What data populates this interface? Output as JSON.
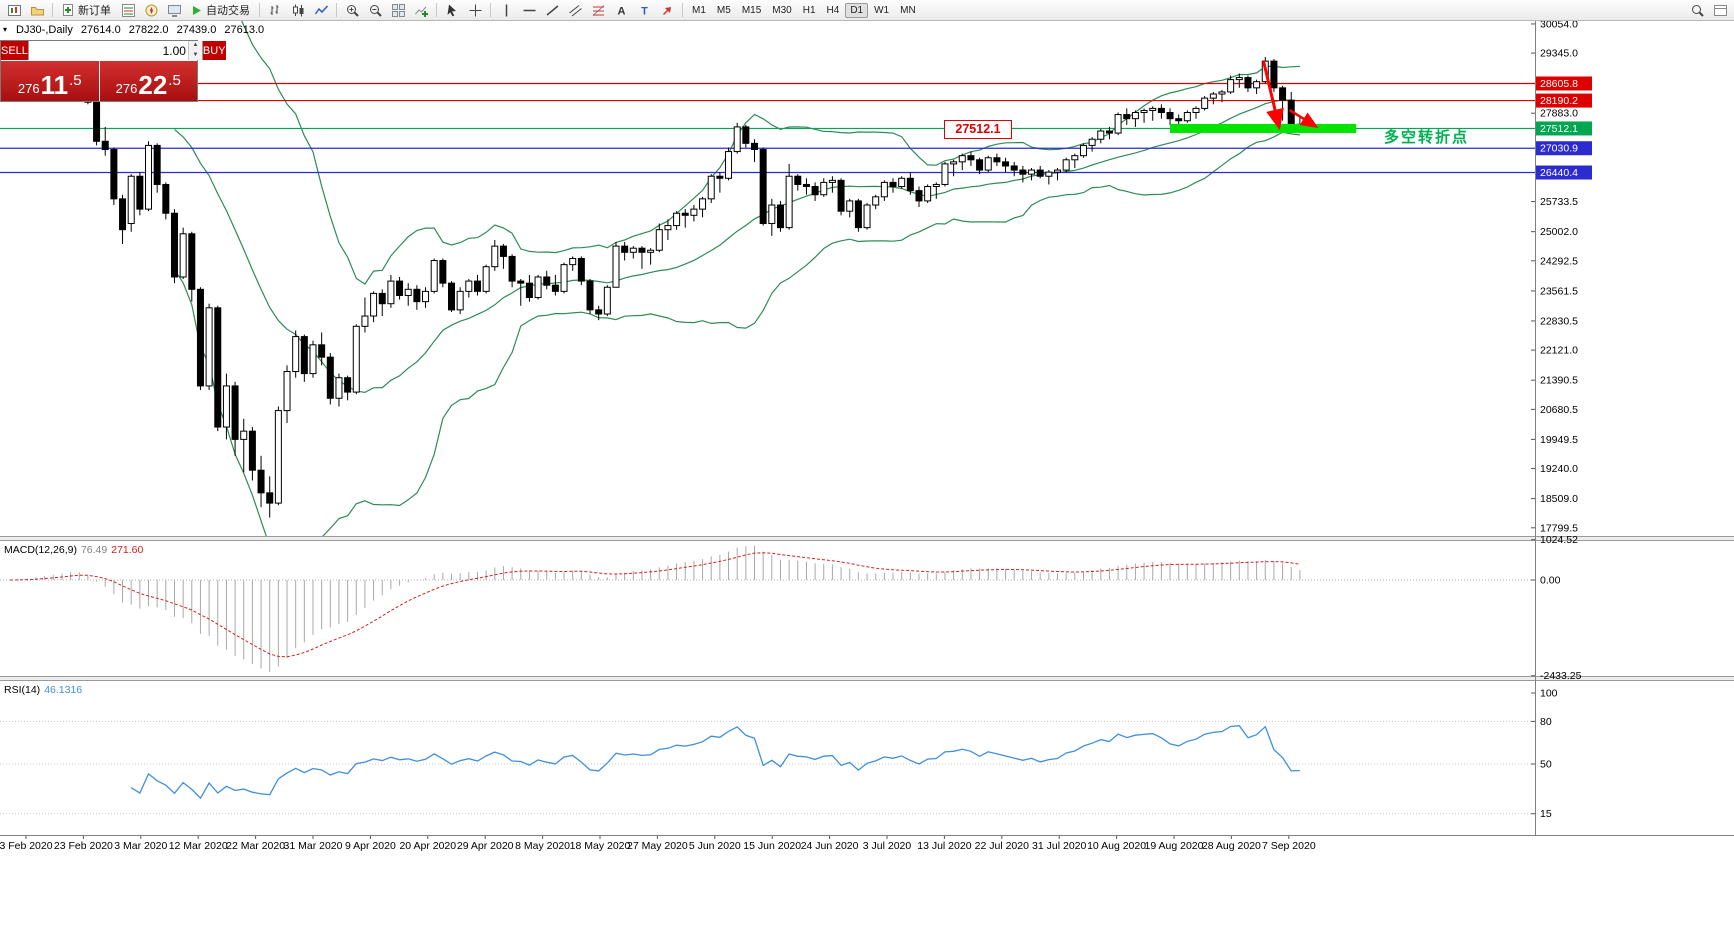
{
  "toolbar": {
    "new_order_label": "新订单",
    "autotrade_label": "自动交易",
    "timeframes": [
      "M1",
      "M5",
      "M15",
      "M30",
      "H1",
      "H4",
      "D1",
      "W1",
      "MN"
    ],
    "active_timeframe": "D1"
  },
  "chart_header": {
    "symbol_period": "DJ30-,Daily",
    "open": "27614.0",
    "high": "27822.0",
    "low": "27439.0",
    "close": "27613.0"
  },
  "trade_panel": {
    "sell_label": "SELL",
    "buy_label": "BUY",
    "volume": "1.00",
    "sell_price": {
      "prefix": "276",
      "big": "11",
      "frac": ".5"
    },
    "buy_price": {
      "prefix": "276",
      "big": "22",
      "frac": ".5"
    }
  },
  "annotations": {
    "price_flag": "27512.1",
    "note": "多空转折点"
  },
  "chart_data": {
    "type": "candlestick",
    "symbol": "DJ30",
    "period": "Daily",
    "y_range": [
      17600,
      30150
    ],
    "y_axis_ticks": [
      "30054.0",
      "29345.0",
      "27883.0",
      "25733.5",
      "25002.0",
      "24292.5",
      "23561.5",
      "22830.5",
      "22121.0",
      "21390.5",
      "20680.5",
      "19949.5",
      "19240.0",
      "18509.0",
      "17799.5"
    ],
    "x_labels": [
      "3 Feb 2020",
      "23 Feb 2020",
      "3 Mar 2020",
      "12 Mar 2020",
      "22 Mar 2020",
      "31 Mar 2020",
      "9 Apr 2020",
      "20 Apr 2020",
      "29 Apr 2020",
      "8 May 2020",
      "18 May 2020",
      "27 May 2020",
      "5 Jun 2020",
      "15 Jun 2020",
      "24 Jun 2020",
      "3 Jul 2020",
      "13 Jul 2020",
      "22 Jul 2020",
      "31 Jul 2020",
      "10 Aug 2020",
      "19 Aug 2020",
      "28 Aug 2020",
      "7 Sep 2020"
    ],
    "levels": [
      {
        "price": 28605.8,
        "label": "28605.8",
        "color": "#dd0000"
      },
      {
        "price": 28190.2,
        "label": "28190.2",
        "color": "#dd0000"
      },
      {
        "price": 27512.1,
        "label": "27512.1",
        "color": "#00a651"
      },
      {
        "price": 27030.9,
        "label": "27030.9",
        "color": "#2b2bd0"
      },
      {
        "price": 26440.4,
        "label": "26440.4",
        "color": "#2b2bd0"
      }
    ],
    "bollinger": {
      "period": 20,
      "deviation": 2,
      "color": "#2E8B57"
    },
    "macd": {
      "name": "MACD(12,26,9)",
      "main": "76.49",
      "signal": "271.60",
      "axis": [
        "1024.52",
        "0.00",
        "-2433.25"
      ],
      "bar_color": "#a8a8a8",
      "signal_color": "#d42020"
    },
    "rsi": {
      "name": "RSI(14)",
      "value": "46.1316",
      "axis": [
        "100",
        "80",
        "50",
        "15"
      ],
      "levels": [
        80,
        50,
        15
      ],
      "color": "#3f8fde"
    },
    "drawings": {
      "arrow_color": "#ff0000",
      "highlight_bar": {
        "price": 27512.1,
        "from_index": 134,
        "to_index": 155.5,
        "color": "#00e400",
        "thickness": 9
      },
      "arrows": [
        {
          "from": [
            144.8,
            29150
          ],
          "to": [
            146.6,
            27540
          ],
          "width": 3
        },
        {
          "from": [
            147.8,
            27960
          ],
          "to": [
            150.9,
            27555
          ],
          "width": 2.5
        }
      ]
    },
    "ohlc": [
      [
        28400,
        28650,
        28350,
        28600
      ],
      [
        28600,
        28800,
        28500,
        28750
      ],
      [
        28750,
        29000,
        28700,
        28950
      ],
      [
        28950,
        29150,
        28900,
        29100
      ],
      [
        29100,
        29250,
        29000,
        29200
      ],
      [
        29200,
        29350,
        29150,
        29300
      ],
      [
        29300,
        29450,
        29250,
        29400
      ],
      [
        29400,
        29570,
        29350,
        29550
      ],
      [
        29550,
        29600,
        29150,
        29250
      ],
      [
        28850,
        28900,
        28100,
        28150
      ],
      [
        28150,
        28300,
        27100,
        27200
      ],
      [
        27200,
        27550,
        26850,
        27000
      ],
      [
        27000,
        27050,
        25650,
        25800
      ],
      [
        25800,
        25900,
        24700,
        25050
      ],
      [
        25200,
        26400,
        25000,
        26350
      ],
      [
        26350,
        26450,
        25400,
        25550
      ],
      [
        25550,
        27200,
        25500,
        27100
      ],
      [
        27100,
        27150,
        25950,
        26150
      ],
      [
        26150,
        26200,
        25300,
        25450
      ],
      [
        25450,
        25550,
        23750,
        23900
      ],
      [
        23900,
        25100,
        23850,
        24950
      ],
      [
        24950,
        25000,
        23300,
        23600
      ],
      [
        23600,
        23650,
        21150,
        21250
      ],
      [
        21250,
        23250,
        21150,
        23150
      ],
      [
        23150,
        23200,
        20150,
        20250
      ],
      [
        20250,
        21550,
        19950,
        21250
      ],
      [
        21250,
        21350,
        19550,
        19950
      ],
      [
        19950,
        20450,
        19150,
        20150
      ],
      [
        20150,
        20250,
        18950,
        19200
      ],
      [
        19200,
        19550,
        18300,
        18650
      ],
      [
        18650,
        19050,
        18050,
        18400
      ],
      [
        18400,
        20750,
        18350,
        20650
      ],
      [
        20650,
        21750,
        20350,
        21600
      ],
      [
        21600,
        22600,
        21450,
        22450
      ],
      [
        22450,
        22500,
        21350,
        21550
      ],
      [
        21550,
        22350,
        21450,
        22250
      ],
      [
        22250,
        22550,
        21750,
        21950
      ],
      [
        21950,
        22050,
        20800,
        20950
      ],
      [
        20950,
        21550,
        20750,
        21450
      ],
      [
        21450,
        21500,
        20900,
        21100
      ],
      [
        21100,
        22750,
        21050,
        22700
      ],
      [
        22700,
        23400,
        22550,
        22950
      ],
      [
        22950,
        23550,
        22800,
        23500
      ],
      [
        23500,
        23600,
        22950,
        23250
      ],
      [
        23250,
        23950,
        23150,
        23800
      ],
      [
        23800,
        23900,
        23350,
        23450
      ],
      [
        23450,
        23750,
        23200,
        23600
      ],
      [
        23600,
        23700,
        23100,
        23300
      ],
      [
        23300,
        23650,
        23150,
        23550
      ],
      [
        23550,
        24350,
        23500,
        24300
      ],
      [
        24300,
        24350,
        23650,
        23750
      ],
      [
        23750,
        23800,
        23050,
        23100
      ],
      [
        23100,
        23650,
        23000,
        23550
      ],
      [
        23550,
        23850,
        23400,
        23800
      ],
      [
        23800,
        23950,
        23450,
        23550
      ],
      [
        23550,
        24200,
        23500,
        24150
      ],
      [
        24150,
        24800,
        24050,
        24650
      ],
      [
        24650,
        24700,
        24100,
        24400
      ],
      [
        24400,
        24450,
        23650,
        23800
      ],
      [
        23800,
        23850,
        23200,
        23750
      ],
      [
        23750,
        23950,
        23300,
        23400
      ],
      [
        23400,
        23950,
        23350,
        23900
      ],
      [
        23900,
        24050,
        23600,
        23700
      ],
      [
        23700,
        23950,
        23450,
        23550
      ],
      [
        23550,
        24250,
        23500,
        24200
      ],
      [
        24200,
        24400,
        24050,
        24350
      ],
      [
        24350,
        24400,
        23700,
        23800
      ],
      [
        23800,
        23850,
        23000,
        23100
      ],
      [
        23100,
        23200,
        22850,
        23000
      ],
      [
        23000,
        23700,
        22950,
        23650
      ],
      [
        23650,
        24750,
        23650,
        24650
      ],
      [
        24650,
        24750,
        24300,
        24500
      ],
      [
        24500,
        24650,
        24350,
        24600
      ],
      [
        24600,
        24650,
        24100,
        24500
      ],
      [
        24500,
        24600,
        24200,
        24550
      ],
      [
        24550,
        25200,
        24500,
        25050
      ],
      [
        25050,
        25300,
        24800,
        25150
      ],
      [
        25150,
        25500,
        25050,
        25450
      ],
      [
        25450,
        25550,
        25100,
        25400
      ],
      [
        25400,
        25650,
        25250,
        25550
      ],
      [
        25550,
        25850,
        25350,
        25800
      ],
      [
        25800,
        26400,
        25700,
        26350
      ],
      [
        26350,
        26450,
        25950,
        26300
      ],
      [
        26300,
        27050,
        26250,
        26950
      ],
      [
        26950,
        27650,
        26900,
        27550
      ],
      [
        27550,
        27600,
        27050,
        27150
      ],
      [
        27150,
        27250,
        26700,
        27000
      ],
      [
        27000,
        27050,
        25150,
        25200
      ],
      [
        25200,
        25800,
        24900,
        25650
      ],
      [
        25650,
        25750,
        25000,
        25100
      ],
      [
        25100,
        26650,
        25050,
        26350
      ],
      [
        26350,
        26400,
        26000,
        26150
      ],
      [
        26150,
        26300,
        25900,
        26100
      ],
      [
        26100,
        26200,
        25750,
        25900
      ],
      [
        25900,
        26300,
        25850,
        26200
      ],
      [
        26200,
        26350,
        25950,
        26250
      ],
      [
        26250,
        26300,
        25400,
        25500
      ],
      [
        25500,
        25800,
        25350,
        25750
      ],
      [
        25750,
        25800,
        25000,
        25100
      ],
      [
        25100,
        25700,
        25050,
        25650
      ],
      [
        25650,
        25900,
        25550,
        25850
      ],
      [
        25850,
        26250,
        25750,
        26200
      ],
      [
        26200,
        26300,
        25950,
        26100
      ],
      [
        26100,
        26350,
        26050,
        26300
      ],
      [
        26300,
        26450,
        25900,
        26000
      ],
      [
        26000,
        26100,
        25600,
        25750
      ],
      [
        25750,
        26150,
        25700,
        26100
      ],
      [
        26100,
        26200,
        25800,
        26150
      ],
      [
        26150,
        26700,
        26100,
        26650
      ],
      [
        26650,
        26750,
        26350,
        26700
      ],
      [
        26700,
        26900,
        26500,
        26850
      ],
      [
        26850,
        26950,
        26600,
        26750
      ],
      [
        26750,
        26800,
        26400,
        26500
      ],
      [
        26500,
        26850,
        26450,
        26800
      ],
      [
        26800,
        26900,
        26600,
        26700
      ],
      [
        26700,
        26800,
        26450,
        26600
      ],
      [
        26600,
        26700,
        26350,
        26500
      ],
      [
        26500,
        26600,
        26200,
        26400
      ],
      [
        26400,
        26550,
        26250,
        26500
      ],
      [
        26500,
        26600,
        26300,
        26350
      ],
      [
        26350,
        26500,
        26150,
        26450
      ],
      [
        26450,
        26550,
        26250,
        26500
      ],
      [
        26500,
        26800,
        26450,
        26750
      ],
      [
        26750,
        26900,
        26550,
        26850
      ],
      [
        26850,
        27150,
        26800,
        27100
      ],
      [
        27100,
        27300,
        26950,
        27250
      ],
      [
        27250,
        27500,
        27150,
        27450
      ],
      [
        27450,
        27550,
        27250,
        27400
      ],
      [
        27400,
        27900,
        27350,
        27850
      ],
      [
        27850,
        28000,
        27600,
        27750
      ],
      [
        27750,
        27950,
        27550,
        27900
      ],
      [
        27900,
        28000,
        27650,
        27950
      ],
      [
        27950,
        28050,
        27700,
        28000
      ],
      [
        28000,
        28100,
        27750,
        27900
      ],
      [
        27900,
        28000,
        27600,
        27750
      ],
      [
        27750,
        27850,
        27500,
        27700
      ],
      [
        27700,
        27950,
        27650,
        27900
      ],
      [
        27900,
        28050,
        27750,
        28000
      ],
      [
        28000,
        28300,
        27950,
        28250
      ],
      [
        28250,
        28400,
        28100,
        28350
      ],
      [
        28350,
        28450,
        28150,
        28400
      ],
      [
        28400,
        28800,
        28350,
        28700
      ],
      [
        28700,
        28850,
        28500,
        28750
      ],
      [
        28750,
        28800,
        28400,
        28500
      ],
      [
        28500,
        28700,
        28350,
        28650
      ],
      [
        28650,
        29250,
        28600,
        29150
      ],
      [
        29150,
        29200,
        28400,
        28500
      ],
      [
        28500,
        28550,
        27700,
        28200
      ],
      [
        28200,
        28400,
        27550,
        27600
      ],
      [
        27614,
        27822,
        27439,
        27613
      ]
    ]
  }
}
